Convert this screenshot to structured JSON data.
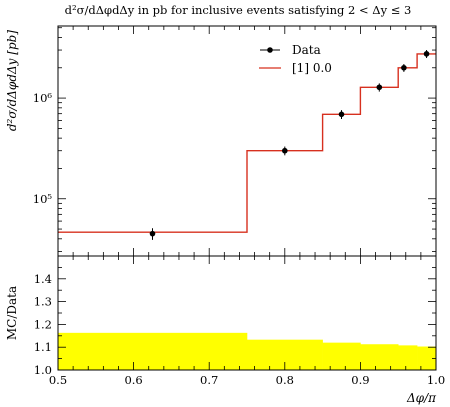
{
  "chart_data": [
    {
      "type": "line",
      "title": "d²σ/dΔφdΔy in pb for inclusive events satisfying 2 < Δy ≤ 3",
      "ylabel": "d²σ/dΔφdΔy [pb]",
      "xlabel": "",
      "yscale": "log",
      "xlim": [
        0.5,
        1.0
      ],
      "ylim": [
        27000,
        5200000
      ],
      "y_ticks": [
        100000,
        1000000
      ],
      "y_tick_labels": [
        "10⁵",
        "10⁶"
      ],
      "legend": {
        "position": "top-right",
        "entries": [
          "Data",
          "[1] 0.0"
        ]
      },
      "series": [
        {
          "name": "Data",
          "style": "points",
          "x": [
            0.625,
            0.8,
            0.875,
            0.925,
            0.9575,
            0.9875
          ],
          "y": [
            45000,
            300000,
            690000,
            1280000,
            2000000,
            2750000
          ],
          "yerr": [
            6000,
            30000,
            70000,
            120000,
            180000,
            250000
          ]
        },
        {
          "name": "[1] 0.0",
          "style": "step",
          "bin_edges": [
            0.5,
            0.75,
            0.85,
            0.9,
            0.95,
            0.975,
            1.0
          ],
          "y": [
            46500,
            300000,
            690000,
            1280000,
            2000000,
            2750000
          ]
        }
      ]
    },
    {
      "type": "area",
      "title": "",
      "ylabel": "MC/Data",
      "xlabel": "Δφ/π",
      "xlim": [
        0.5,
        1.0
      ],
      "ylim": [
        1.0,
        1.5
      ],
      "x_ticks": [
        0.5,
        0.6,
        0.7,
        0.8,
        0.9,
        1.0
      ],
      "x_tick_labels": [
        "0.5",
        "0.6",
        "0.7",
        "0.8",
        "0.9",
        "1.0"
      ],
      "y_ticks": [
        1.0,
        1.1,
        1.2,
        1.3,
        1.4
      ],
      "y_tick_labels": [
        "1.0",
        "1.1",
        "1.2",
        "1.3",
        "1.4"
      ],
      "series": [
        {
          "name": "",
          "bin_edges": [
            0.5,
            0.75,
            0.85,
            0.9,
            0.95,
            0.975,
            1.0
          ],
          "y": [
            1.163,
            1.133,
            1.12,
            1.113,
            1.108,
            1.103
          ]
        }
      ]
    }
  ],
  "colors": {
    "data_points": "#000000",
    "mc_line": "#d7301f",
    "ratio_band": "#ffff00",
    "axes": "#000000"
  }
}
